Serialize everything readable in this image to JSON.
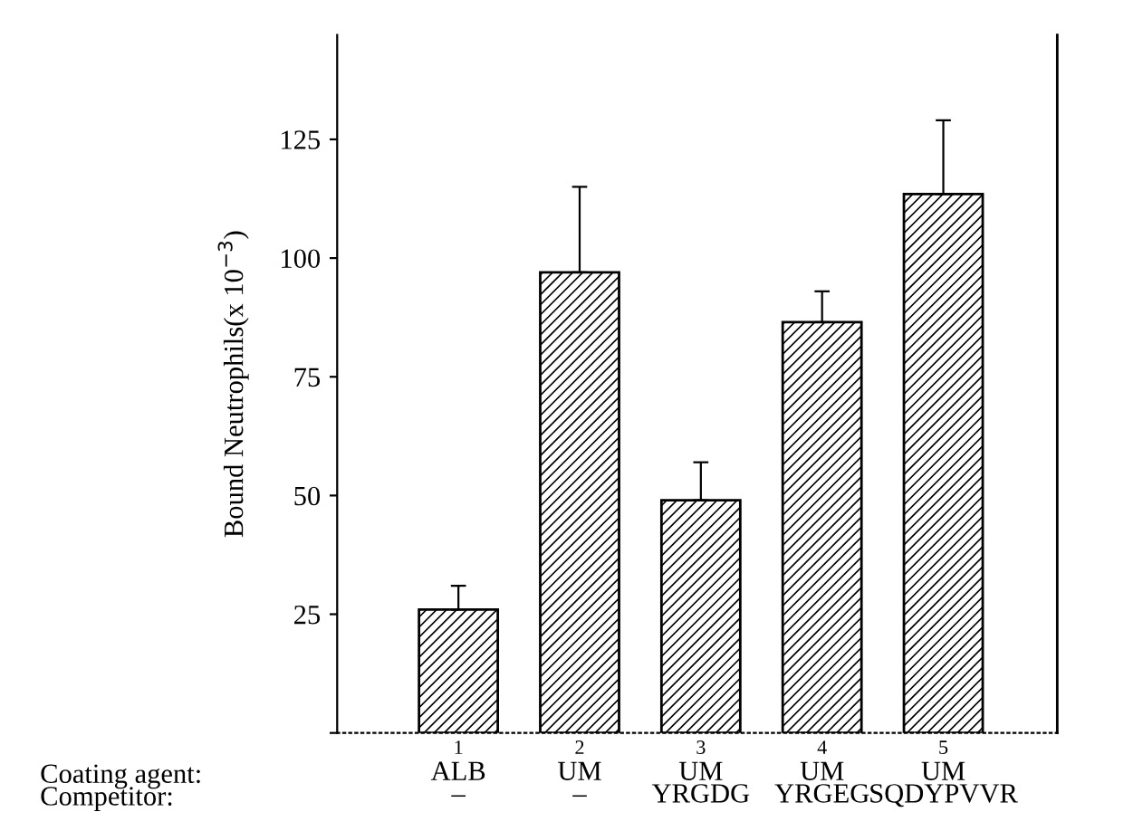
{
  "chart_data": {
    "type": "bar",
    "ylabel": "Bound Neutrophils(x 10$^{−3}$)",
    "categories": [
      "1\nALB\n–",
      "2\nUM\n–",
      "3\nUM\nYRGDG",
      "4\nUM\nYRGEG",
      "5\nUM\nSQDYPVVR"
    ],
    "values": [
      26,
      97,
      49,
      86.5,
      113.5
    ],
    "errors": [
      [
        26,
        31
      ],
      [
        97,
        115
      ],
      [
        49,
        57
      ],
      [
        86.5,
        93
      ],
      [
        113.5,
        129
      ]
    ],
    "color": "#000000",
    "ylim": [
      0,
      147
    ],
    "yticks": [
      {
        "value": 0,
        "label": null
      },
      25,
      50,
      75,
      100,
      125
    ],
    "annotations": [
      "Coating agent:",
      "Competitor:"
    ],
    "grid": false
  }
}
